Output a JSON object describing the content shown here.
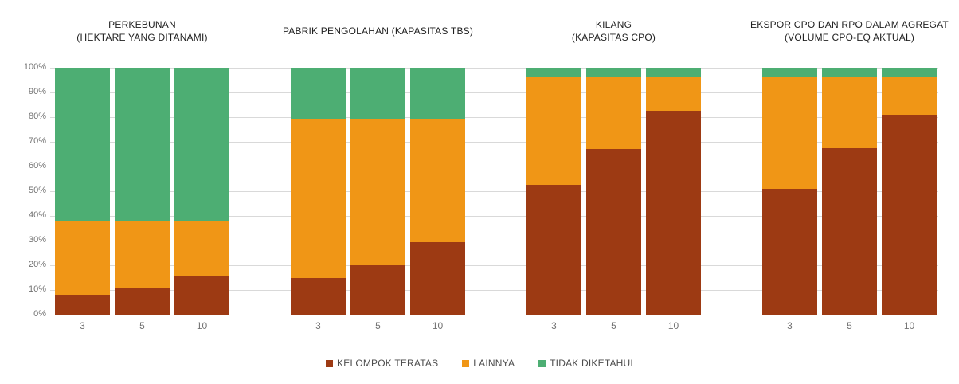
{
  "chart_data": {
    "type": "bar",
    "variant": "100-percent-stacked",
    "grid": true,
    "legend_position": "bottom",
    "ylim": [
      0,
      100
    ],
    "y_ticks": [
      "0%",
      "10%",
      "20%",
      "30%",
      "40%",
      "50%",
      "60%",
      "70%",
      "80%",
      "90%",
      "100%"
    ],
    "categories": [
      "3",
      "5",
      "10"
    ],
    "series_order": [
      "kelompok_teratas",
      "lainnya",
      "tidak_diketahui"
    ],
    "legend": [
      {
        "key": "kelompok_teratas",
        "label": "KELOMPOK TERATAS",
        "color": "#9d3a13"
      },
      {
        "key": "lainnya",
        "label": "LAINNYA",
        "color": "#f09616"
      },
      {
        "key": "tidak_diketahui",
        "label": "TIDAK DIKETAHUI",
        "color": "#4dae73"
      }
    ],
    "panels": [
      {
        "title_lines": [
          "PERKEBUNAN",
          "(HEKTARE YANG DITANAMI)"
        ],
        "series": [
          {
            "key": "kelompok_teratas",
            "name": "KELOMPOK TERATAS",
            "values": [
              8,
              11,
              15.5
            ]
          },
          {
            "key": "lainnya",
            "name": "LAINNYA",
            "values": [
              30,
              27,
              22.5
            ]
          },
          {
            "key": "tidak_diketahui",
            "name": "TIDAK DIKETAHUI",
            "values": [
              62,
              62,
              62
            ]
          }
        ]
      },
      {
        "title_lines": [
          "PABRIK PENGOLAHAN (KAPASITAS TBS)"
        ],
        "series": [
          {
            "key": "kelompok_teratas",
            "name": "KELOMPOK TERATAS",
            "values": [
              15,
              20,
              29.5
            ]
          },
          {
            "key": "lainnya",
            "name": "LAINNYA",
            "values": [
              64.5,
              59.5,
              50
            ]
          },
          {
            "key": "tidak_diketahui",
            "name": "TIDAK DIKETAHUI",
            "values": [
              20.5,
              20.5,
              20.5
            ]
          }
        ]
      },
      {
        "title_lines": [
          "KILANG",
          "(KAPASITAS CPO)"
        ],
        "series": [
          {
            "key": "kelompok_teratas",
            "name": "KELOMPOK TERATAS",
            "values": [
              52.5,
              67,
              82.5
            ]
          },
          {
            "key": "lainnya",
            "name": "LAINNYA",
            "values": [
              43.5,
              29,
              13.5
            ]
          },
          {
            "key": "tidak_diketahui",
            "name": "TIDAK DIKETAHUI",
            "values": [
              4,
              4,
              4
            ]
          }
        ]
      },
      {
        "title_lines": [
          "EKSPOR CPO DAN RPO DALAM AGREGAT",
          "(VOLUME CPO-EQ AKTUAL)"
        ],
        "series": [
          {
            "key": "kelompok_teratas",
            "name": "KELOMPOK TERATAS",
            "values": [
              51,
              67.5,
              81
            ]
          },
          {
            "key": "lainnya",
            "name": "LAINNYA",
            "values": [
              45,
              28.5,
              15
            ]
          },
          {
            "key": "tidak_diketahui",
            "name": "TIDAK DIKETAHUI",
            "values": [
              4,
              4,
              4
            ]
          }
        ]
      }
    ],
    "colors": {
      "kelompok_teratas": "#9d3a13",
      "lainnya": "#f09616",
      "tidak_diketahui": "#4dae73",
      "gridline": "#d9d9d9",
      "axis_text": "#737373",
      "title_text": "#1f1f1f",
      "legend_text": "#4d4d4d",
      "background": "#ffffff"
    }
  }
}
